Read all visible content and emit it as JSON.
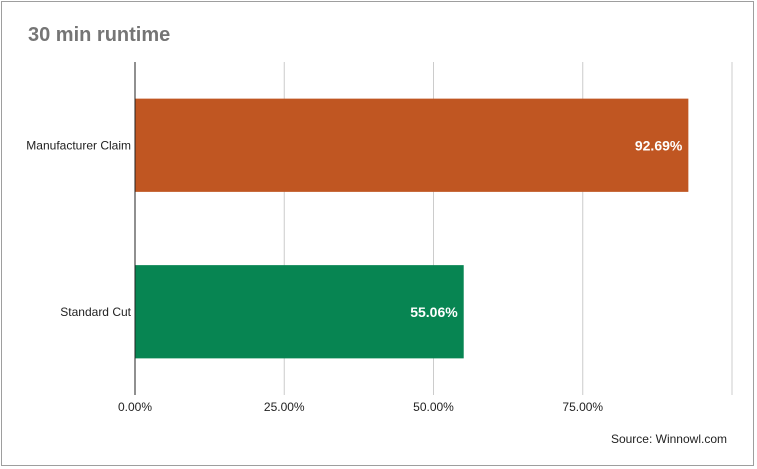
{
  "chart_data": {
    "type": "bar",
    "orientation": "horizontal",
    "title": "30 min runtime",
    "categories": [
      "Manufacturer Claim",
      "Standard Cut"
    ],
    "values": [
      92.69,
      55.06
    ],
    "value_labels": [
      "92.69%",
      "55.06%"
    ],
    "colors": [
      "#c05622",
      "#078552"
    ],
    "xlim": [
      0,
      100
    ],
    "x_ticks": [
      0,
      25,
      50,
      75
    ],
    "x_tick_labels": [
      "0.00%",
      "25.00%",
      "50.00%",
      "75.00%"
    ],
    "grid": true,
    "source": "Source: Winnowl.com"
  }
}
